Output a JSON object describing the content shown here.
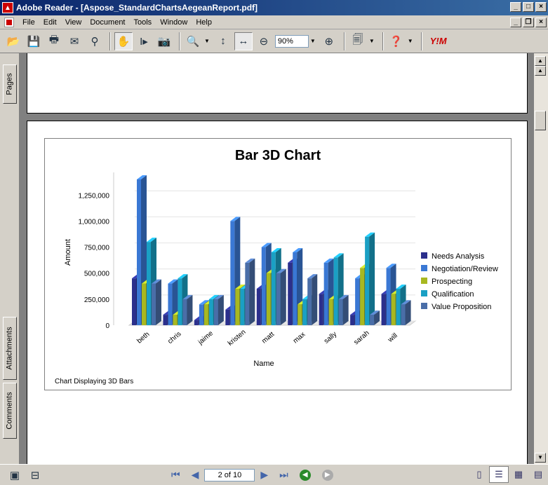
{
  "window": {
    "title": "Adobe Reader - [Aspose_StandardChartsAegeanReport.pdf]"
  },
  "menu": {
    "items": [
      "File",
      "Edit",
      "View",
      "Document",
      "Tools",
      "Window",
      "Help"
    ]
  },
  "toolbar": {
    "zoom": "90%"
  },
  "side_tabs": {
    "pages": "Pages",
    "attachments": "Attachments",
    "comments": "Comments"
  },
  "status": {
    "page_indicator": "2 of 10"
  },
  "colors": {
    "needs": "#2b2f8c",
    "negotiation": "#3a78d4",
    "prospecting": "#a8b820",
    "qualification": "#1aa0c4",
    "value": "#4a6ea8"
  },
  "chart_data": {
    "type": "bar",
    "title": "Bar 3D Chart",
    "xlabel": "Name",
    "ylabel": "Amount",
    "footer": "Chart Displaying 3D Bars",
    "ylim": [
      0,
      1400000
    ],
    "yticks": [
      "0",
      "250,000",
      "500,000",
      "750,000",
      "1,000,000",
      "1,250,000"
    ],
    "categories": [
      "beth",
      "chris",
      "jaime",
      "kristen",
      "matt",
      "max",
      "sally",
      "sarah",
      "will"
    ],
    "series": [
      {
        "name": "Needs Analysis",
        "values": [
          450000,
          100000,
          50000,
          150000,
          350000,
          600000,
          300000,
          100000,
          300000
        ]
      },
      {
        "name": "Negotiation/Review",
        "values": [
          1400000,
          400000,
          200000,
          1000000,
          750000,
          700000,
          600000,
          450000,
          550000
        ]
      },
      {
        "name": "Prospecting",
        "values": [
          400000,
          100000,
          200000,
          350000,
          500000,
          200000,
          250000,
          550000,
          300000
        ]
      },
      {
        "name": "Qualification",
        "values": [
          800000,
          450000,
          250000,
          350000,
          700000,
          250000,
          650000,
          850000,
          350000
        ]
      },
      {
        "name": "Value Proposition",
        "values": [
          400000,
          250000,
          250000,
          600000,
          500000,
          450000,
          250000,
          100000,
          200000
        ]
      }
    ]
  }
}
